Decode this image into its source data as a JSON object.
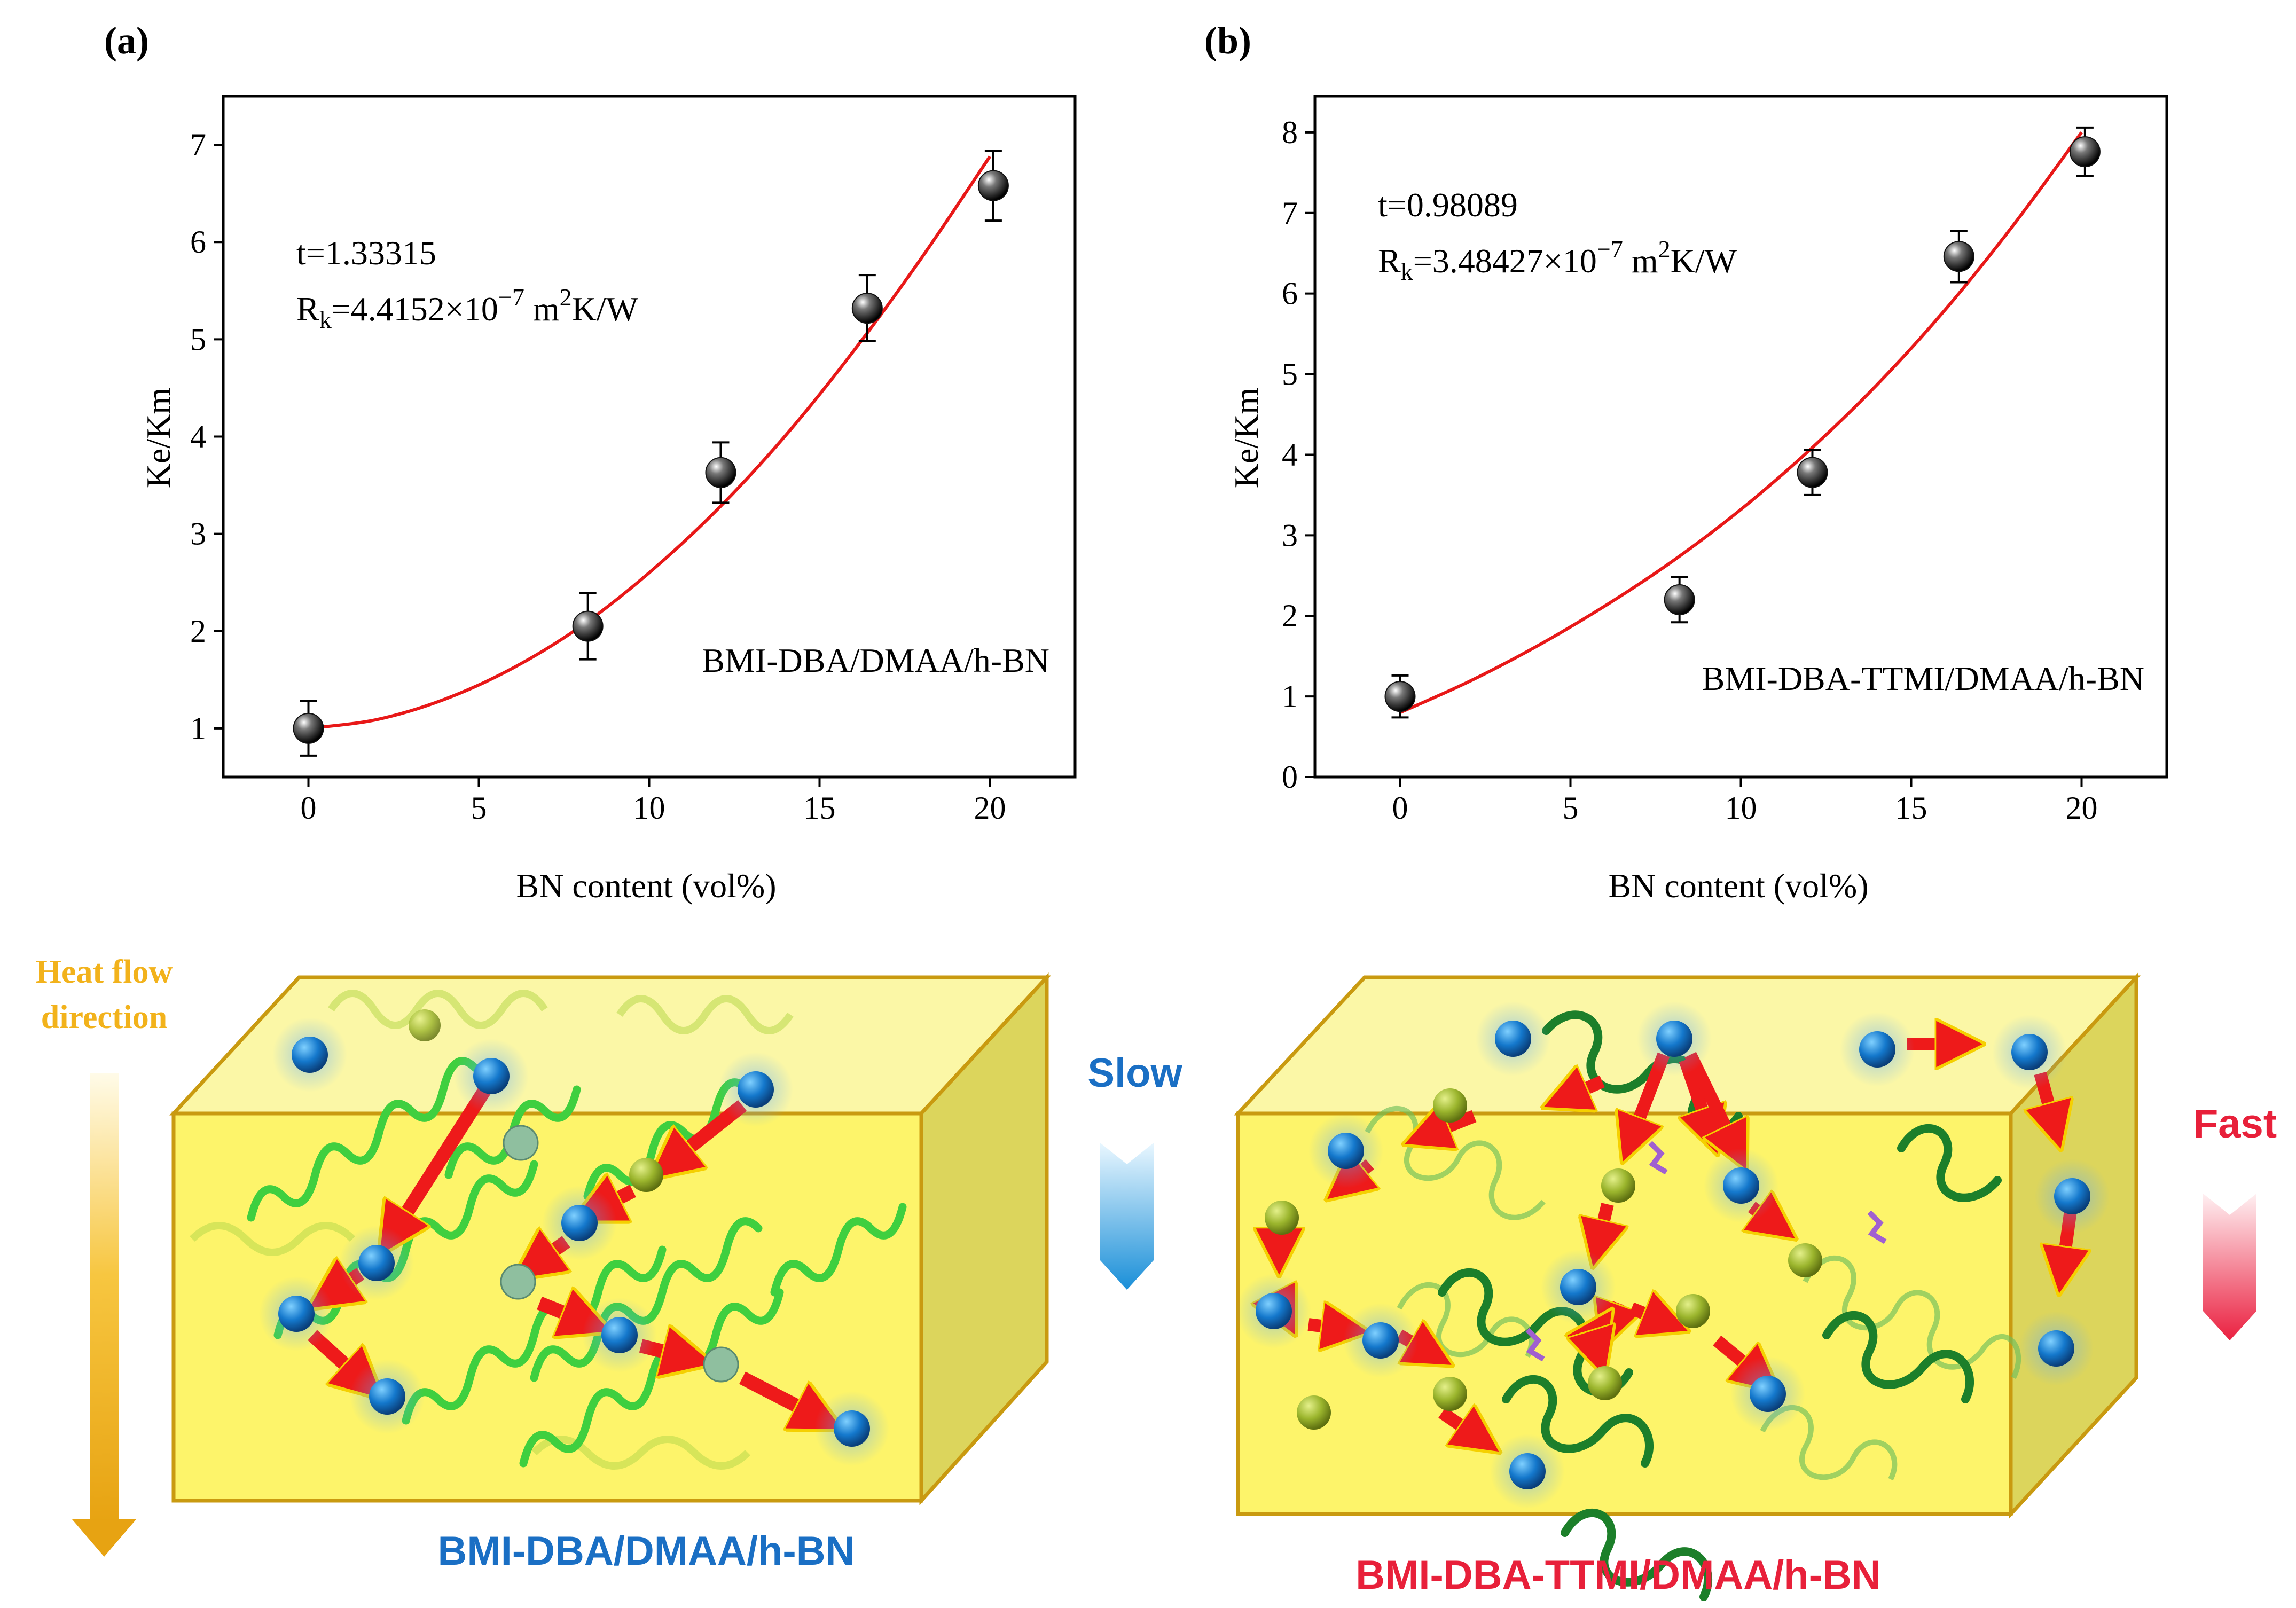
{
  "colors": {
    "fit_line": "#e81818",
    "marker": "#111111",
    "box_fill": "#fdf46a",
    "box_edge": "#c99a10",
    "chain_light": "#3fcf3f",
    "chain_dark": "#1c7f2a",
    "bn_blue": "#1478cc",
    "bn_green": "#9bb52d",
    "arrow": "#ee1a1a",
    "slow": "#1a8fd8",
    "fast": "#ea2040",
    "heat": "#f2b21b"
  },
  "chart_data": [
    {
      "type": "scatter",
      "panel_label": "(a)",
      "xlabel": "BN content (vol%)",
      "ylabel": "Ke/Km",
      "xlim": [
        -2.5,
        22.5
      ],
      "ylim": [
        0.5,
        7.5
      ],
      "x_ticks": [
        "0",
        "5",
        "10",
        "15",
        "20"
      ],
      "y_ticks": [
        "1",
        "2",
        "3",
        "4",
        "5",
        "6",
        "7"
      ],
      "x": [
        0,
        8.2,
        12.1,
        16.4,
        20.1
      ],
      "y": [
        1.0,
        2.05,
        3.63,
        5.32,
        6.58
      ],
      "yerr": [
        0.28,
        0.34,
        0.31,
        0.34,
        0.36
      ],
      "fit_x": [
        0,
        2,
        4,
        6,
        8,
        10,
        12,
        14,
        16,
        18,
        20
      ],
      "fit_y": [
        1.0,
        1.09,
        1.3,
        1.62,
        2.05,
        2.6,
        3.25,
        4.01,
        4.88,
        5.84,
        6.88
      ],
      "t_text": "t=1.33315",
      "rk_prefix": "R",
      "rk_sub": "k",
      "rk_value": "=4.4152×10",
      "rk_exp": "−7",
      "rk_unit_a": " m",
      "rk_unit_sup": "2",
      "rk_unit_b": "K/W",
      "sample_label": "BMI-DBA/DMAA/h-BN"
    },
    {
      "type": "scatter",
      "panel_label": "(b)",
      "xlabel": "BN content (vol%)",
      "ylabel": "Ke/Km",
      "xlim": [
        -2.5,
        22.5
      ],
      "ylim": [
        0,
        8.45
      ],
      "x_ticks": [
        "0",
        "5",
        "10",
        "15",
        "20"
      ],
      "y_ticks": [
        "0",
        "1",
        "2",
        "3",
        "4",
        "5",
        "6",
        "7",
        "8"
      ],
      "x": [
        0,
        8.2,
        12.1,
        16.4,
        20.1
      ],
      "y": [
        1.0,
        2.2,
        3.78,
        6.46,
        7.76
      ],
      "yerr": [
        0.26,
        0.28,
        0.28,
        0.32,
        0.3
      ],
      "fit_x": [
        0,
        2,
        4,
        6,
        8,
        10,
        12,
        14,
        16,
        18,
        20
      ],
      "fit_y": [
        0.8,
        1.18,
        1.62,
        2.12,
        2.68,
        3.32,
        4.05,
        4.87,
        5.8,
        6.85,
        8.0
      ],
      "t_text": "t=0.98089",
      "rk_prefix": "R",
      "rk_sub": "k",
      "rk_value": "=3.48427×10",
      "rk_exp": "−7",
      "rk_unit_a": " m",
      "rk_unit_sup": "2",
      "rk_unit_b": "K/W",
      "sample_label": "BMI-DBA-TTMI/DMAA/h-BN"
    }
  ],
  "schematic": {
    "heat_flow_line1": "Heat flow",
    "heat_flow_line2": "direction",
    "slow_label": "Slow",
    "fast_label": "Fast",
    "left_caption": "BMI-DBA/DMAA/h-BN",
    "right_caption": "BMI-DBA-TTMI/DMAA/h-BN"
  }
}
